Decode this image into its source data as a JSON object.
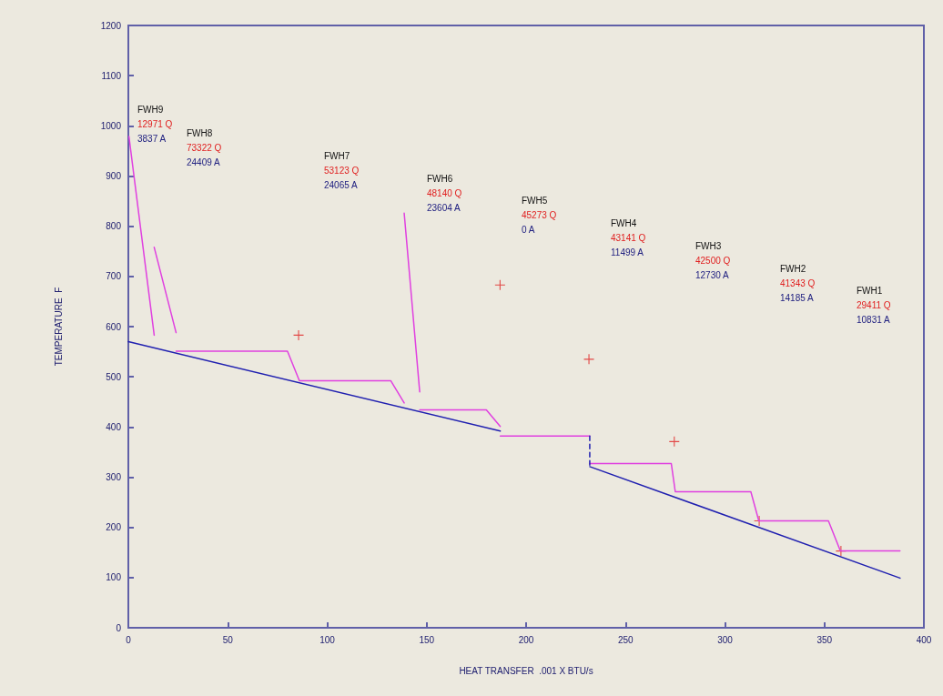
{
  "chart_data": {
    "type": "line",
    "xlabel": "HEAT TRANSFER  .001 X BTU/s",
    "ylabel": "TEMPERATURE  F",
    "xlim": [
      0,
      400
    ],
    "xticks": [
      0,
      50,
      100,
      150,
      200,
      250,
      300,
      350,
      400
    ],
    "ylim": [
      0,
      1200
    ],
    "yticks": [
      0,
      100,
      200,
      300,
      400,
      500,
      600,
      700,
      800,
      900,
      1000,
      1100,
      1200
    ],
    "grid": false,
    "marker": "none",
    "series": [
      {
        "color": "#e040e0",
        "line_style": "solid",
        "x": [
          0.3,
          13
        ],
        "values": [
          979,
          583
        ]
      },
      {
        "color": "#e040e0",
        "line_style": "solid",
        "x": [
          13,
          24
        ],
        "values": [
          758,
          588
        ]
      },
      {
        "color": "#e040e0",
        "line_style": "solid",
        "x": [
          24,
          80,
          86,
          132,
          138.7
        ],
        "values": [
          551,
          551,
          492,
          492,
          448
        ]
      },
      {
        "color": "#e040e0",
        "line_style": "solid",
        "x": [
          138.7,
          146.5
        ],
        "values": [
          826,
          470
        ]
      },
      {
        "color": "#e040e0",
        "line_style": "solid",
        "x": [
          146.5,
          180,
          187
        ],
        "values": [
          434,
          434,
          401
        ]
      },
      {
        "color": "#e040e0",
        "line_style": "solid",
        "x": [
          187,
          232
        ],
        "values": [
          382,
          382
        ]
      },
      {
        "color": "#e040e0",
        "line_style": "solid",
        "x": [
          232,
          273,
          275,
          313,
          317,
          352,
          358,
          388
        ],
        "values": [
          327,
          327,
          271,
          271,
          213,
          213,
          153,
          153
        ]
      },
      {
        "color": "#2020b0",
        "line_style": "solid",
        "x": [
          0,
          187
        ],
        "values": [
          570,
          392
        ]
      },
      {
        "color": "#2020b0",
        "line_style": "solid",
        "x": [
          232,
          388
        ],
        "values": [
          321,
          99
        ]
      },
      {
        "color": "#2020b0",
        "line_style": "dashed",
        "x": [
          232,
          232
        ],
        "values": [
          382,
          321
        ]
      },
      {
        "type": "scatter",
        "color": "#e02020",
        "marker": "cross",
        "x": [
          85.6,
          186.9,
          231.6,
          274.5,
          317.2,
          358.3
        ],
        "values": [
          583,
          683,
          535,
          371,
          213,
          153
        ]
      }
    ],
    "annotations": [
      "FWH9\n12971 Q\n3837 A",
      "FWH8\n73322 Q\n24409 A",
      "FWH7\n53123 Q\n24065 A",
      "FWH6\n48140 Q\n23604 A",
      "FWH5\n45273 Q\n0 A",
      "FWH4\n43141 Q\n11499 A",
      "FWH3\n42500 Q\n12730 A",
      "FWH2\n41343 Q\n14185 A",
      "FWH1\n29411 Q\n10831 A"
    ]
  }
}
